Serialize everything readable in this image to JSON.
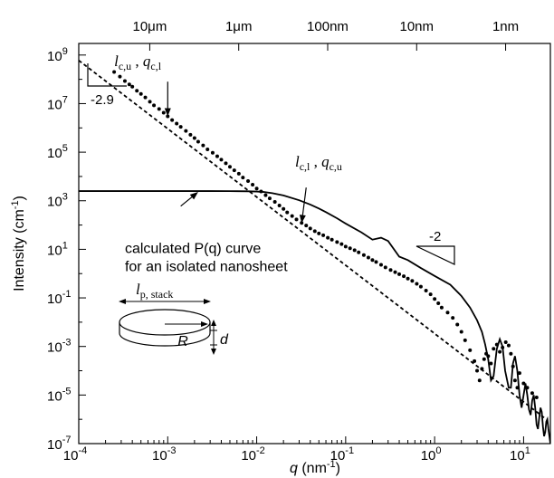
{
  "chart_data": {
    "type": "scatter",
    "title": "",
    "x_scale": "log",
    "y_scale": "log",
    "xlim": [
      0.0001,
      20
    ],
    "ylim": [
      1e-07,
      3000000000.0
    ],
    "xlabel": "q (nm⁻¹)",
    "xlabel_parts": {
      "var": "q",
      "unit_open": " (nm",
      "exp": "-1",
      "unit_close": ")"
    },
    "ylabel": "Intensity (cm⁻¹)",
    "ylabel_parts": {
      "text": "Intensity (cm",
      "exp": "-1",
      "close": ")"
    },
    "x_ticks": [
      {
        "value": 0.0001,
        "base": "10",
        "exp": "-4"
      },
      {
        "value": 0.001,
        "base": "10",
        "exp": "-3"
      },
      {
        "value": 0.01,
        "base": "10",
        "exp": "-2"
      },
      {
        "value": 0.1,
        "base": "10",
        "exp": "-1"
      },
      {
        "value": 1,
        "base": "10",
        "exp": "0"
      },
      {
        "value": 10,
        "base": "10",
        "exp": "1"
      }
    ],
    "y_ticks": [
      {
        "value": 1e-07,
        "base": "10",
        "exp": "-7"
      },
      {
        "value": 1e-05,
        "base": "10",
        "exp": "-5"
      },
      {
        "value": 0.001,
        "base": "10",
        "exp": "-3"
      },
      {
        "value": 0.1,
        "base": "10",
        "exp": "-1"
      },
      {
        "value": 10,
        "base": "10",
        "exp": "1"
      },
      {
        "value": 1000,
        "base": "10",
        "exp": "3"
      },
      {
        "value": 100000.0,
        "base": "10",
        "exp": "5"
      },
      {
        "value": 10000000.0,
        "base": "10",
        "exp": "7"
      },
      {
        "value": 1000000000.0,
        "base": "10",
        "exp": "9"
      }
    ],
    "top_axis_ticks": [
      {
        "label": "10μm",
        "q": 0.000628
      },
      {
        "label": "1μm",
        "q": 0.00628
      },
      {
        "label": "100nm",
        "q": 0.0628
      },
      {
        "label": "10nm",
        "q": 0.628
      },
      {
        "label": "1nm",
        "q": 6.28
      }
    ],
    "series": [
      {
        "kind": "points",
        "x": [
          0.00025,
          0.00029,
          0.00033,
          0.00037,
          0.0004,
          0.00045,
          0.0005,
          0.00056,
          0.00063,
          0.0007,
          0.0008,
          0.0009,
          0.001,
          0.00112,
          0.00126,
          0.0014,
          0.0016,
          0.0018,
          0.002,
          0.0022,
          0.0025,
          0.0028,
          0.0032,
          0.0036,
          0.004,
          0.0045,
          0.005,
          0.0056,
          0.0063,
          0.007,
          0.008,
          0.009,
          0.01,
          0.0112,
          0.0126,
          0.014,
          0.016,
          0.018,
          0.02,
          0.022,
          0.025,
          0.028,
          0.032,
          0.036,
          0.04,
          0.045,
          0.05,
          0.056,
          0.063,
          0.07,
          0.08,
          0.09,
          0.1,
          0.112,
          0.126,
          0.14,
          0.16,
          0.18,
          0.2,
          0.22,
          0.25,
          0.28,
          0.32,
          0.36,
          0.4,
          0.45,
          0.5,
          0.56,
          0.63,
          0.7,
          0.8,
          0.9,
          1.0,
          1.1,
          1.2,
          1.4,
          1.6,
          1.8,
          2.0,
          2.2,
          2.5,
          2.8,
          3.0,
          3.2,
          3.4,
          3.6,
          3.8,
          4.0,
          4.3,
          4.6,
          5.0,
          5.4,
          5.8,
          6.3,
          6.8,
          7.2,
          7.6,
          8.0,
          8.5,
          9.0,
          10.0,
          11.0,
          12.5,
          14.0
        ],
        "y": [
          200000000.0,
          130000000.0,
          85000000.0,
          62000000.0,
          50000000.0,
          34000000.0,
          25000000.0,
          18000000.0,
          12000000.0,
          8500000.0,
          6000000.0,
          4200000.0,
          3000000.0,
          2100000.0,
          1500000.0,
          1100000.0,
          750000.0,
          520000.0,
          380000.0,
          270000.0,
          190000.0,
          130000.0,
          95000.0,
          68000.0,
          49000.0,
          35000.0,
          25000.0,
          18000.0,
          13000.0,
          9000.0,
          6500.0,
          4600.0,
          3200.0,
          2400.0,
          1700.0,
          1250.0,
          900,
          640,
          460,
          330,
          235,
          170,
          122,
          95,
          72,
          56,
          45,
          38,
          30,
          25,
          20,
          16.5,
          13,
          11,
          9.2,
          7.5,
          5.8,
          4.6,
          3.6,
          3.0,
          2.3,
          1.8,
          1.4,
          1.15,
          0.95,
          0.78,
          0.62,
          0.5,
          0.38,
          0.29,
          0.2,
          0.14,
          0.09,
          0.06,
          0.04,
          0.025,
          0.015,
          0.008,
          0.004,
          0.0018,
          0.0007,
          0.00025,
          0.0001,
          4e-05,
          0.00012,
          0.0003,
          0.0005,
          0.0004,
          0.0002,
          0.0008,
          0.0012,
          0.0006,
          0.0009,
          0.0015,
          0.0011,
          0.0005,
          0.00015,
          4e-05,
          2e-05,
          8e-05,
          3e-05,
          2e-05,
          1.2e-05,
          8e-06
        ]
      },
      {
        "kind": "line",
        "style": "solid",
        "x": [
          0.0001,
          0.001,
          0.003,
          0.006,
          0.008,
          0.01,
          0.012,
          0.015,
          0.02,
          0.03,
          0.04,
          0.05,
          0.06,
          0.08,
          0.1,
          0.15,
          0.2,
          0.25,
          0.3,
          0.4,
          0.5,
          0.7,
          1.0,
          1.5,
          2.0,
          2.5,
          3.0,
          3.4,
          3.7,
          4.0,
          4.3,
          4.6,
          5.0,
          5.4,
          5.8,
          6.2,
          6.8,
          7.2,
          7.6,
          8.0,
          8.5,
          9.0,
          9.5,
          10.0,
          10.5,
          11.0,
          11.5,
          12.0,
          12.5,
          13.0,
          13.5,
          14.0,
          14.5,
          15.0,
          15.5,
          16.0,
          16.5,
          17.0,
          17.5,
          18.0,
          18.5,
          19.0,
          19.5,
          20.0
        ],
        "y": [
          2500,
          2500,
          2500,
          2480,
          2450,
          2400,
          2300,
          2050,
          1650,
          1050,
          700,
          480,
          340,
          190,
          115,
          50,
          25,
          30,
          22,
          5,
          3.6,
          1.7,
          0.8,
          0.35,
          0.12,
          0.04,
          0.012,
          0.004,
          0.0012,
          0.0003,
          4e-05,
          6e-05,
          0.0008,
          0.002,
          0.001,
          0.0001,
          2e-05,
          2e-05,
          0.0002,
          0.0004,
          0.0001,
          1e-05,
          3e-06,
          1e-05,
          3e-05,
          1e-05,
          2.5e-06,
          1.5e-06,
          6e-06,
          1e-05,
          3e-06,
          6e-07,
          4e-07,
          1.2e-06,
          3e-06,
          2e-06,
          5e-07,
          2e-07,
          3e-07,
          8e-07,
          1e-06,
          4e-07,
          2e-07,
          1e-07
        ]
      },
      {
        "kind": "line",
        "style": "dashed",
        "x": [
          0.0001,
          18
        ],
        "y": [
          600000000.0,
          1e-06
        ]
      }
    ],
    "annotations": [
      {
        "id": "lcu",
        "main": "l",
        "sub": "c,u",
        "sep": " , ",
        "main2": "q",
        "sub2": "c,l",
        "text_q": [
          0.00025,
          350000000.0
        ],
        "arrow_from": [
          0.001,
          80000000.0
        ],
        "arrow_to": [
          0.001,
          3000000.0
        ]
      },
      {
        "id": "lcl",
        "main": "l",
        "sub": "c,l",
        "sep": " , ",
        "main2": "q",
        "sub2": "c,u",
        "text_q": [
          0.027,
          25000.0
        ],
        "arrow_from": [
          0.036,
          3500
        ],
        "arrow_to": [
          0.032,
          120
        ]
      },
      {
        "id": "pq",
        "lines": [
          "calculated P(q) curve",
          "for an isolated nanosheet"
        ],
        "text_q": [
          0.00033,
          7
        ],
        "arrow_from": [
          0.0014,
          600
        ],
        "arrow_to": [
          0.0022,
          2300
        ]
      },
      {
        "id": "slope_left",
        "text": "-2.9"
      },
      {
        "id": "slope_right",
        "text": "-2"
      }
    ],
    "inset": {
      "width_label_main": "l",
      "width_label_sub": "p, stack",
      "radius_label": "R",
      "thickness_label": "d"
    },
    "grid": false,
    "legend": "none"
  }
}
